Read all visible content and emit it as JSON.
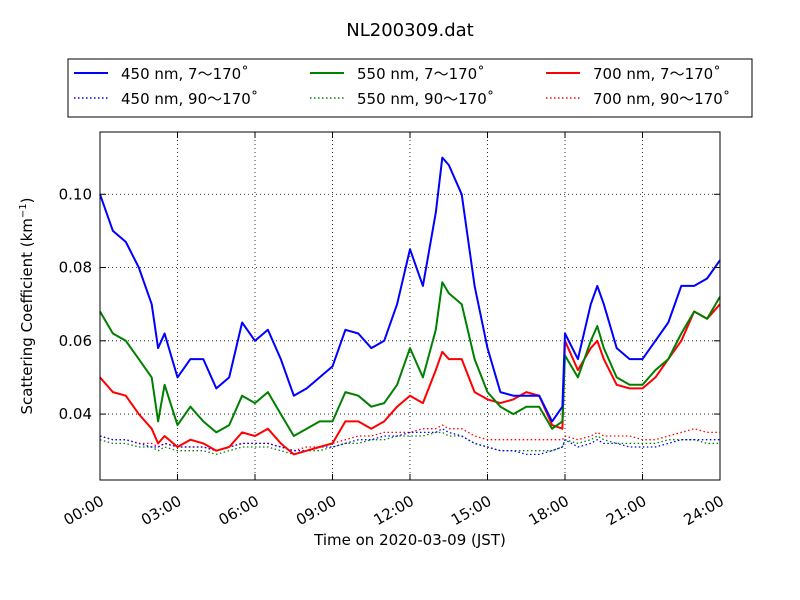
{
  "chart_data": {
    "type": "line",
    "title": "NL200309.dat",
    "xlabel": "Time on 2020-03-09 (JST)",
    "ylabel_main": "Scattering Coefficient (km",
    "ylabel_sup": "−1",
    "ylabel_close": ")",
    "xlim": [
      0,
      24
    ],
    "ylim": [
      0.022,
      0.117
    ],
    "grid": true,
    "legend_position": "top, outside",
    "x_ticks": [
      {
        "value": 0,
        "label": "00:00"
      },
      {
        "value": 3,
        "label": "03:00"
      },
      {
        "value": 6,
        "label": "06:00"
      },
      {
        "value": 9,
        "label": "09:00"
      },
      {
        "value": 12,
        "label": "12:00"
      },
      {
        "value": 15,
        "label": "15:00"
      },
      {
        "value": 18,
        "label": "18:00"
      },
      {
        "value": 21,
        "label": "21:00"
      },
      {
        "value": 24,
        "label": "24:00"
      }
    ],
    "y_ticks": [
      {
        "value": 0.04,
        "label": "0.04"
      },
      {
        "value": 0.06,
        "label": "0.06"
      },
      {
        "value": 0.08,
        "label": "0.08"
      },
      {
        "value": 0.1,
        "label": "0.10"
      }
    ],
    "x": [
      0,
      0.5,
      1,
      1.5,
      2,
      2.25,
      2.5,
      3,
      3.5,
      4,
      4.5,
      5,
      5.5,
      6,
      6.5,
      7,
      7.5,
      8,
      8.5,
      9,
      9.5,
      10,
      10.5,
      11,
      11.5,
      12,
      12.5,
      13,
      13.25,
      13.5,
      14,
      14.5,
      15,
      15.5,
      16,
      16.5,
      17,
      17.5,
      17.9,
      18,
      18.5,
      19,
      19.25,
      19.5,
      20,
      20.5,
      21,
      21.5,
      22,
      22.5,
      23,
      23.5,
      24
    ],
    "series": [
      {
        "name": "450 nm, 7～170˚",
        "color": "#0000ff",
        "style": "solid",
        "values": [
          0.1,
          0.09,
          0.087,
          0.08,
          0.07,
          0.058,
          0.062,
          0.05,
          0.055,
          0.055,
          0.047,
          0.05,
          0.065,
          0.06,
          0.063,
          0.055,
          0.045,
          0.047,
          0.05,
          0.053,
          0.063,
          0.062,
          0.058,
          0.06,
          0.07,
          0.085,
          0.075,
          0.095,
          0.11,
          0.108,
          0.1,
          0.075,
          0.058,
          0.046,
          0.045,
          0.045,
          0.045,
          0.038,
          0.042,
          0.062,
          0.055,
          0.07,
          0.075,
          0.07,
          0.058,
          0.055,
          0.055,
          0.06,
          0.065,
          0.075,
          0.075,
          0.077,
          0.082
        ]
      },
      {
        "name": "550 nm, 7～170˚",
        "color": "#008000",
        "style": "solid",
        "values": [
          0.068,
          0.062,
          0.06,
          0.055,
          0.05,
          0.038,
          0.048,
          0.037,
          0.042,
          0.038,
          0.035,
          0.037,
          0.045,
          0.043,
          0.046,
          0.04,
          0.034,
          0.036,
          0.038,
          0.038,
          0.046,
          0.045,
          0.042,
          0.043,
          0.048,
          0.058,
          0.05,
          0.063,
          0.076,
          0.073,
          0.07,
          0.055,
          0.046,
          0.042,
          0.04,
          0.042,
          0.042,
          0.036,
          0.038,
          0.056,
          0.05,
          0.06,
          0.064,
          0.058,
          0.05,
          0.048,
          0.048,
          0.052,
          0.055,
          0.062,
          0.068,
          0.066,
          0.072
        ]
      },
      {
        "name": "700 nm, 7～170˚",
        "color": "#ff0000",
        "style": "solid",
        "values": [
          0.05,
          0.046,
          0.045,
          0.04,
          0.036,
          0.032,
          0.034,
          0.031,
          0.033,
          0.032,
          0.03,
          0.031,
          0.035,
          0.034,
          0.036,
          0.032,
          0.029,
          0.03,
          0.031,
          0.032,
          0.038,
          0.038,
          0.036,
          0.038,
          0.042,
          0.045,
          0.043,
          0.052,
          0.057,
          0.055,
          0.055,
          0.046,
          0.044,
          0.043,
          0.044,
          0.046,
          0.045,
          0.037,
          0.036,
          0.06,
          0.052,
          0.058,
          0.06,
          0.055,
          0.048,
          0.047,
          0.047,
          0.05,
          0.055,
          0.06,
          0.068,
          0.066,
          0.07
        ]
      },
      {
        "name": "450 nm, 90～170˚",
        "color": "#0000ff",
        "style": "dotted",
        "values": [
          0.034,
          0.033,
          0.033,
          0.032,
          0.031,
          0.031,
          0.032,
          0.031,
          0.031,
          0.031,
          0.03,
          0.031,
          0.032,
          0.032,
          0.032,
          0.031,
          0.03,
          0.03,
          0.031,
          0.031,
          0.032,
          0.033,
          0.033,
          0.034,
          0.034,
          0.035,
          0.035,
          0.035,
          0.036,
          0.035,
          0.034,
          0.032,
          0.031,
          0.03,
          0.03,
          0.029,
          0.029,
          0.03,
          0.031,
          0.033,
          0.031,
          0.032,
          0.033,
          0.032,
          0.032,
          0.031,
          0.031,
          0.031,
          0.032,
          0.033,
          0.033,
          0.033,
          0.033
        ]
      },
      {
        "name": "550 nm, 90～170˚",
        "color": "#008000",
        "style": "dotted",
        "values": [
          0.033,
          0.032,
          0.032,
          0.031,
          0.031,
          0.03,
          0.031,
          0.03,
          0.03,
          0.03,
          0.029,
          0.03,
          0.031,
          0.031,
          0.031,
          0.03,
          0.029,
          0.03,
          0.03,
          0.031,
          0.032,
          0.032,
          0.033,
          0.033,
          0.034,
          0.034,
          0.034,
          0.035,
          0.035,
          0.034,
          0.034,
          0.032,
          0.031,
          0.03,
          0.03,
          0.03,
          0.03,
          0.03,
          0.031,
          0.033,
          0.032,
          0.033,
          0.034,
          0.033,
          0.032,
          0.032,
          0.032,
          0.032,
          0.033,
          0.033,
          0.033,
          0.032,
          0.032
        ]
      },
      {
        "name": "700 nm, 90～170˚",
        "color": "#ff0000",
        "style": "dotted",
        "values": [
          0.034,
          0.033,
          0.033,
          0.032,
          0.032,
          0.031,
          0.032,
          0.031,
          0.031,
          0.031,
          0.03,
          0.031,
          0.032,
          0.032,
          0.032,
          0.031,
          0.03,
          0.031,
          0.031,
          0.032,
          0.033,
          0.034,
          0.034,
          0.035,
          0.035,
          0.035,
          0.036,
          0.036,
          0.037,
          0.036,
          0.036,
          0.034,
          0.033,
          0.033,
          0.033,
          0.033,
          0.033,
          0.033,
          0.033,
          0.034,
          0.033,
          0.034,
          0.035,
          0.034,
          0.034,
          0.034,
          0.033,
          0.033,
          0.034,
          0.035,
          0.036,
          0.035,
          0.035
        ]
      }
    ]
  }
}
